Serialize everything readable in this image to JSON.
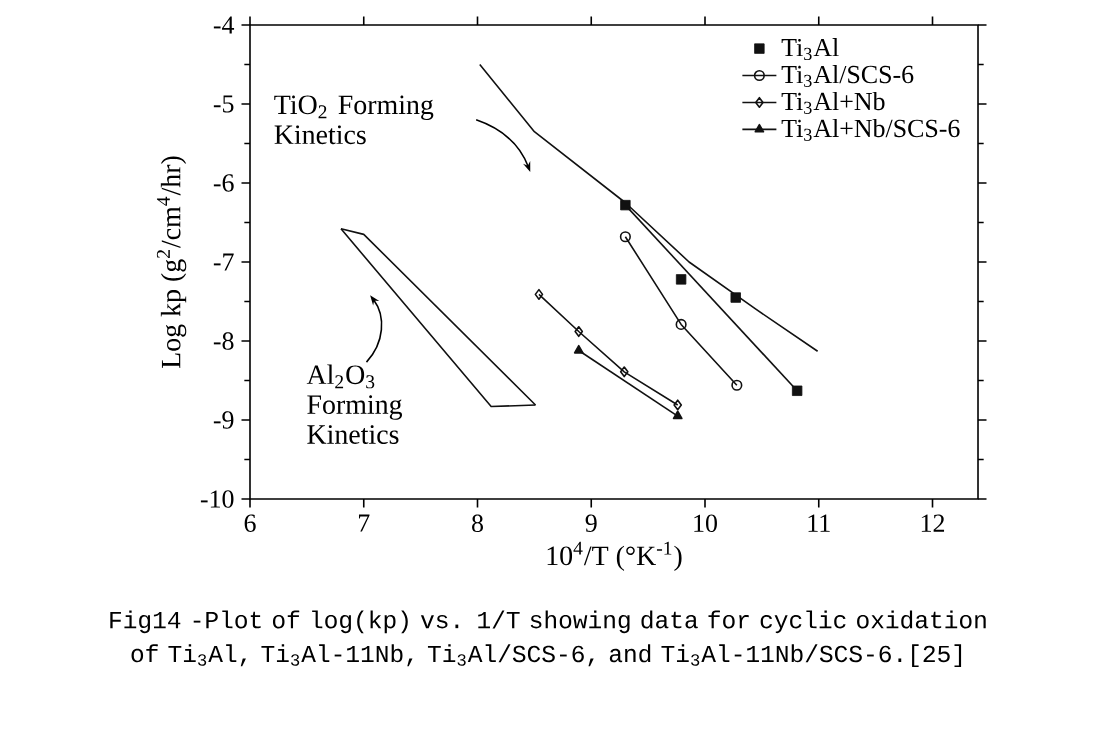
{
  "chart_data": {
    "type": "line",
    "xlabel": "10$^{4}$/T (°K$^{-1}$)",
    "ylabel": "Log kp (g$^{2}$/cm$^{4}$/hr)",
    "xlim": [
      6,
      12.4
    ],
    "ylim": [
      -10,
      -4
    ],
    "xticks": [
      6,
      7,
      8,
      9,
      10,
      11,
      12
    ],
    "yticks": [
      -10,
      -9,
      -8,
      -7,
      -6,
      -5,
      -4
    ],
    "legend": "top right",
    "grid": false,
    "series": [
      {
        "name": "Ti$_{3}$Al",
        "type": "scatter",
        "marker": "square",
        "color": "#111111",
        "x": [
          9.3,
          9.79,
          10.27,
          10.81
        ],
        "values": [
          -6.28,
          -7.22,
          -7.45,
          -8.63
        ]
      },
      {
        "name": "Ti$_{3}$Al/SCS-6",
        "marker": "circle",
        "color": "#111111",
        "x": [
          9.3,
          9.79,
          10.28
        ],
        "values": [
          -6.68,
          -7.79,
          -8.56
        ]
      },
      {
        "name": "Ti$_{3}$Al+Nb",
        "marker": "diamond",
        "color": "#111111",
        "x": [
          8.54,
          8.89,
          9.29,
          9.76
        ],
        "values": [
          -7.41,
          -7.88,
          -8.39,
          -8.81
        ]
      },
      {
        "name": "Ti$_{3}$Al+Nb/SCS-6",
        "marker": "triangle",
        "color": "#111111",
        "x": [
          8.89,
          9.76
        ],
        "values": [
          -8.12,
          -8.95
        ]
      },
      {
        "marker": "none",
        "color": "#111111",
        "x": [
          9.3,
          10.81
        ],
        "values": [
          -6.28,
          -8.63
        ]
      },
      {
        "marker": "none",
        "color": "#111111",
        "x": [
          8.02,
          8.5,
          9.3,
          9.86,
          10.45,
          10.99
        ],
        "values": [
          -4.5,
          -5.35,
          -6.25,
          -7.0,
          -7.6,
          -8.13
        ]
      },
      {
        "marker": "none",
        "color": "#111111",
        "x": [
          6.8,
          7.0,
          8.51
        ],
        "values": [
          -6.58,
          -6.65,
          -8.81
        ]
      },
      {
        "marker": "none",
        "color": "#111111",
        "x": [
          6.8,
          8.12,
          8.51
        ],
        "values": [
          -6.58,
          -8.83,
          -8.81
        ]
      }
    ],
    "annotations": [
      "TiO$_{2}$ Forming Kinetics",
      "Al$_{2}$O$_{3}$ Forming Kinetics",
      "Fig14 -Plot of log(kp) vs. 1/T showing data for cyclic oxidation of Ti$_{3}$Al, Ti$_{3}$Al-11Nb, Ti$_{3}$Al/SCS-6, and Ti$_{3}$Al-11Nb/SCS-6.[25]"
    ]
  }
}
